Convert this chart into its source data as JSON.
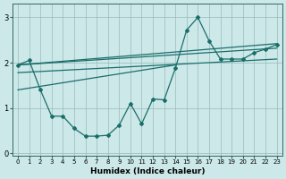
{
  "xlabel": "Humidex (Indice chaleur)",
  "background_color": "#cce8e8",
  "line_color": "#1a6e6a",
  "grid_color": "#99bbbb",
  "xlim": [
    -0.5,
    23.5
  ],
  "ylim": [
    -0.05,
    3.3
  ],
  "xticks": [
    0,
    1,
    2,
    3,
    4,
    5,
    6,
    7,
    8,
    9,
    10,
    11,
    12,
    13,
    14,
    15,
    16,
    17,
    18,
    19,
    20,
    21,
    22,
    23
  ],
  "yticks": [
    0,
    1,
    2,
    3
  ],
  "data_series": {
    "x": [
      0,
      1,
      2,
      3,
      4,
      5,
      6,
      7,
      8,
      9,
      10,
      11,
      12,
      13,
      14,
      15,
      16,
      17,
      18,
      19,
      20,
      21,
      22,
      23
    ],
    "y": [
      1.95,
      2.05,
      1.4,
      0.82,
      0.82,
      0.55,
      0.38,
      0.38,
      0.4,
      0.62,
      1.1,
      0.65,
      1.2,
      1.18,
      1.88,
      2.72,
      3.0,
      2.48,
      2.08,
      2.08,
      2.08,
      2.22,
      2.3,
      2.4
    ]
  },
  "straight_lines": [
    {
      "x": [
        0,
        23
      ],
      "y": [
        1.95,
        2.32
      ]
    },
    {
      "x": [
        0,
        23
      ],
      "y": [
        1.95,
        2.42
      ]
    },
    {
      "x": [
        0,
        23
      ],
      "y": [
        1.78,
        2.08
      ]
    },
    {
      "x": [
        0,
        14
      ],
      "y": [
        1.4,
        1.95
      ]
    }
  ]
}
